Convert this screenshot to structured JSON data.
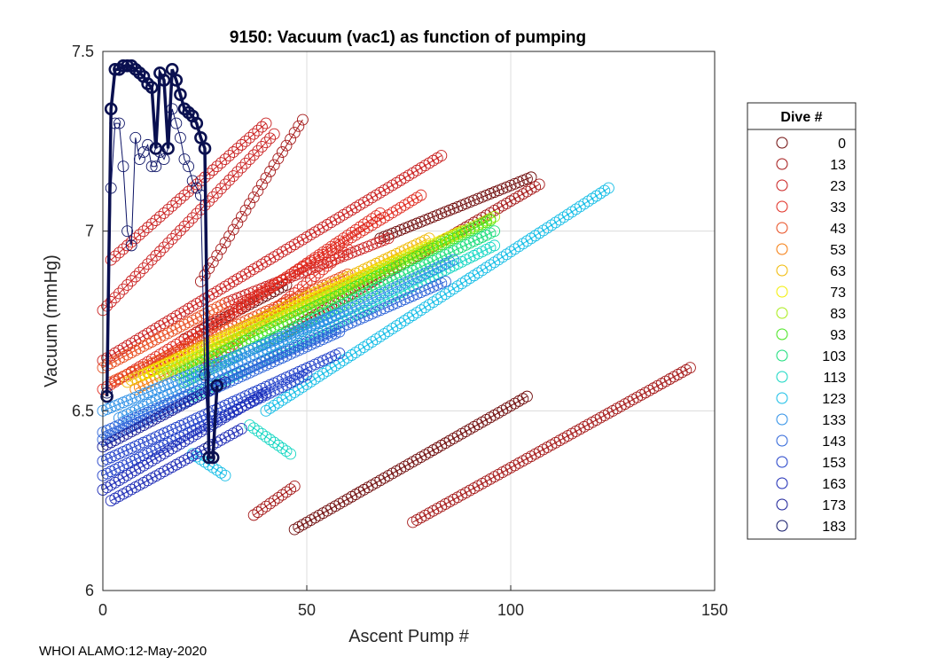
{
  "footer": "WHOI ALAMO:12-May-2020",
  "chart_data": {
    "type": "scatter",
    "title": "9150: Vacuum (vac1) as function of pumping",
    "xlabel": "Ascent Pump #",
    "ylabel": "Vacuum (mmHg)",
    "xlim": [
      0,
      150
    ],
    "ylim": [
      6,
      7.5
    ],
    "x_ticks": [
      0,
      50,
      100,
      150
    ],
    "x_tick_labels": [
      "0",
      "50",
      "100",
      "150"
    ],
    "y_ticks": [
      6,
      6.5,
      7,
      7.5
    ],
    "y_tick_labels": [
      "6",
      "6.5",
      "7",
      "7.5"
    ],
    "grid": true,
    "legend_title": "Dive #",
    "legend_position": "outside-right",
    "marker": "open-circle",
    "series": [
      {
        "name": "0",
        "color": "#6e0a0a",
        "segments": [
          {
            "x0": 47,
            "x1": 104,
            "y0": 6.17,
            "y1": 6.54,
            "step": 1
          },
          {
            "x0": 68,
            "x1": 105,
            "y0": 6.98,
            "y1": 7.15,
            "step": 1
          },
          {
            "x0": 20,
            "x1": 45,
            "y0": 6.7,
            "y1": 6.85,
            "step": 1
          }
        ]
      },
      {
        "name": "13",
        "color": "#a31515",
        "segments": [
          {
            "x0": 76,
            "x1": 144,
            "y0": 6.19,
            "y1": 6.62,
            "step": 1
          },
          {
            "x0": 37,
            "x1": 47,
            "y0": 6.21,
            "y1": 6.29,
            "step": 1
          },
          {
            "x0": 42,
            "x1": 107,
            "y0": 6.7,
            "y1": 7.13,
            "step": 1
          },
          {
            "x0": 24,
            "x1": 49,
            "y0": 6.86,
            "y1": 7.31,
            "step": 1
          }
        ]
      },
      {
        "name": "23",
        "color": "#c91d1d",
        "segments": [
          {
            "x0": 0,
            "x1": 83,
            "y0": 6.64,
            "y1": 7.21,
            "step": 1
          },
          {
            "x0": 0,
            "x1": 42,
            "y0": 6.78,
            "y1": 7.27,
            "step": 1
          },
          {
            "x0": 2,
            "x1": 40,
            "y0": 6.92,
            "y1": 7.3,
            "step": 1
          },
          {
            "x0": 30,
            "x1": 70,
            "y0": 6.8,
            "y1": 6.98,
            "step": 1
          }
        ]
      },
      {
        "name": "33",
        "color": "#e02a1f",
        "segments": [
          {
            "x0": 0,
            "x1": 78,
            "y0": 6.56,
            "y1": 7.1,
            "step": 1
          },
          {
            "x0": 10,
            "x1": 68,
            "y0": 6.6,
            "y1": 7.05,
            "step": 1
          },
          {
            "x0": 25,
            "x1": 60,
            "y0": 6.62,
            "y1": 6.95,
            "step": 1
          }
        ]
      },
      {
        "name": "43",
        "color": "#e84a1c",
        "segments": [
          {
            "x0": 2,
            "x1": 60,
            "y0": 6.58,
            "y1": 6.88,
            "step": 1
          },
          {
            "x0": 0,
            "x1": 30,
            "y0": 6.62,
            "y1": 6.8,
            "step": 1
          }
        ]
      },
      {
        "name": "53",
        "color": "#f57a0a",
        "segments": [
          {
            "x0": 8,
            "x1": 72,
            "y0": 6.56,
            "y1": 6.92,
            "step": 1
          }
        ]
      },
      {
        "name": "63",
        "color": "#f0b800",
        "segments": [
          {
            "x0": 6,
            "x1": 80,
            "y0": 6.58,
            "y1": 6.98,
            "step": 1
          }
        ]
      },
      {
        "name": "73",
        "color": "#f2ee00",
        "segments": [
          {
            "x0": 10,
            "x1": 88,
            "y0": 6.6,
            "y1": 7.0,
            "step": 1
          }
        ]
      },
      {
        "name": "83",
        "color": "#a8ec14",
        "segments": [
          {
            "x0": 14,
            "x1": 96,
            "y0": 6.6,
            "y1": 7.04,
            "step": 1
          }
        ]
      },
      {
        "name": "93",
        "color": "#45e41c",
        "segments": [
          {
            "x0": 18,
            "x1": 95,
            "y0": 6.6,
            "y1": 7.03,
            "step": 1
          }
        ]
      },
      {
        "name": "103",
        "color": "#14dc78",
        "segments": [
          {
            "x0": 20,
            "x1": 96,
            "y0": 6.58,
            "y1": 7.0,
            "step": 1
          }
        ]
      },
      {
        "name": "113",
        "color": "#12d6c2",
        "segments": [
          {
            "x0": 22,
            "x1": 96,
            "y0": 6.54,
            "y1": 6.96,
            "step": 1
          },
          {
            "x0": 36,
            "x1": 46,
            "y0": 6.46,
            "y1": 6.38,
            "step": 1
          }
        ]
      },
      {
        "name": "123",
        "color": "#14bde6",
        "segments": [
          {
            "x0": 40,
            "x1": 124,
            "y0": 6.5,
            "y1": 7.12,
            "step": 1
          },
          {
            "x0": 22,
            "x1": 30,
            "y0": 6.38,
            "y1": 6.32,
            "step": 1
          }
        ]
      },
      {
        "name": "133",
        "color": "#2a8ee6",
        "segments": [
          {
            "x0": 4,
            "x1": 86,
            "y0": 6.48,
            "y1": 6.92,
            "step": 1
          },
          {
            "x0": 0,
            "x1": 60,
            "y0": 6.5,
            "y1": 6.78,
            "step": 1
          }
        ]
      },
      {
        "name": "143",
        "color": "#2a62d8",
        "segments": [
          {
            "x0": 0,
            "x1": 84,
            "y0": 6.44,
            "y1": 6.86,
            "step": 1
          },
          {
            "x0": 0,
            "x1": 58,
            "y0": 6.42,
            "y1": 6.72,
            "step": 1
          }
        ]
      },
      {
        "name": "153",
        "color": "#1f3ec8",
        "segments": [
          {
            "x0": 0,
            "x1": 58,
            "y0": 6.36,
            "y1": 6.66,
            "step": 1
          },
          {
            "x0": 0,
            "x1": 50,
            "y0": 6.32,
            "y1": 6.6,
            "step": 1
          }
        ]
      },
      {
        "name": "163",
        "color": "#1a28b4",
        "segments": [
          {
            "x0": 0,
            "x1": 40,
            "y0": 6.28,
            "y1": 6.55,
            "step": 1
          },
          {
            "x0": 2,
            "x1": 34,
            "y0": 6.25,
            "y1": 6.45,
            "step": 1
          }
        ]
      },
      {
        "name": "173",
        "color": "#171c96",
        "segments": [
          {
            "x0": 0,
            "x1": 30,
            "y0": 6.4,
            "y1": 6.58,
            "step": 1
          }
        ]
      },
      {
        "name": "183",
        "color": "#0d1466",
        "points": [
          [
            1,
            6.55
          ],
          [
            2,
            7.12
          ],
          [
            3,
            7.3
          ],
          [
            4,
            7.3
          ],
          [
            5,
            7.18
          ],
          [
            6,
            7.0
          ],
          [
            7,
            6.96
          ],
          [
            8,
            7.26
          ],
          [
            9,
            7.2
          ],
          [
            10,
            7.22
          ],
          [
            11,
            7.24
          ],
          [
            12,
            7.18
          ],
          [
            13,
            7.18
          ],
          [
            14,
            7.22
          ],
          [
            15,
            7.2
          ],
          [
            16,
            7.23
          ],
          [
            17,
            7.34
          ],
          [
            18,
            7.3
          ],
          [
            19,
            7.26
          ],
          [
            20,
            7.2
          ],
          [
            21,
            7.18
          ],
          [
            22,
            7.14
          ],
          [
            23,
            7.12
          ],
          [
            24,
            7.1
          ],
          [
            25,
            6.6
          ],
          [
            26,
            6.4
          ]
        ]
      },
      {
        "name": "183",
        "color": "#0a1050",
        "bold": true,
        "points": [
          [
            1,
            6.54
          ],
          [
            2,
            7.34
          ],
          [
            3,
            7.45
          ],
          [
            4,
            7.45
          ],
          [
            5,
            7.46
          ],
          [
            6,
            7.46
          ],
          [
            7,
            7.46
          ],
          [
            8,
            7.45
          ],
          [
            9,
            7.44
          ],
          [
            10,
            7.43
          ],
          [
            11,
            7.41
          ],
          [
            12,
            7.4
          ],
          [
            13,
            7.23
          ],
          [
            14,
            7.44
          ],
          [
            15,
            7.42
          ],
          [
            16,
            7.23
          ],
          [
            17,
            7.45
          ],
          [
            18,
            7.42
          ],
          [
            19,
            7.38
          ],
          [
            20,
            7.34
          ],
          [
            21,
            7.33
          ],
          [
            22,
            7.32
          ],
          [
            23,
            7.3
          ],
          [
            24,
            7.26
          ],
          [
            25,
            7.23
          ],
          [
            26,
            6.37
          ],
          [
            27,
            6.37
          ],
          [
            28,
            6.57
          ]
        ]
      }
    ],
    "legend_entries": [
      {
        "label": "0",
        "color": "#6e0a0a"
      },
      {
        "label": "13",
        "color": "#a31515"
      },
      {
        "label": "23",
        "color": "#c91d1d"
      },
      {
        "label": "33",
        "color": "#e02a1f"
      },
      {
        "label": "43",
        "color": "#e84a1c"
      },
      {
        "label": "53",
        "color": "#f57a0a"
      },
      {
        "label": "63",
        "color": "#f0b800"
      },
      {
        "label": "73",
        "color": "#f2ee00"
      },
      {
        "label": "83",
        "color": "#a8ec14"
      },
      {
        "label": "93",
        "color": "#45e41c"
      },
      {
        "label": "103",
        "color": "#14dc78"
      },
      {
        "label": "113",
        "color": "#12d6c2"
      },
      {
        "label": "123",
        "color": "#14bde6"
      },
      {
        "label": "133",
        "color": "#2a8ee6"
      },
      {
        "label": "143",
        "color": "#2a62d8"
      },
      {
        "label": "153",
        "color": "#1f3ec8"
      },
      {
        "label": "163",
        "color": "#1a28b4"
      },
      {
        "label": "173",
        "color": "#171c96"
      },
      {
        "label": "183",
        "color": "#0d1466"
      }
    ]
  }
}
